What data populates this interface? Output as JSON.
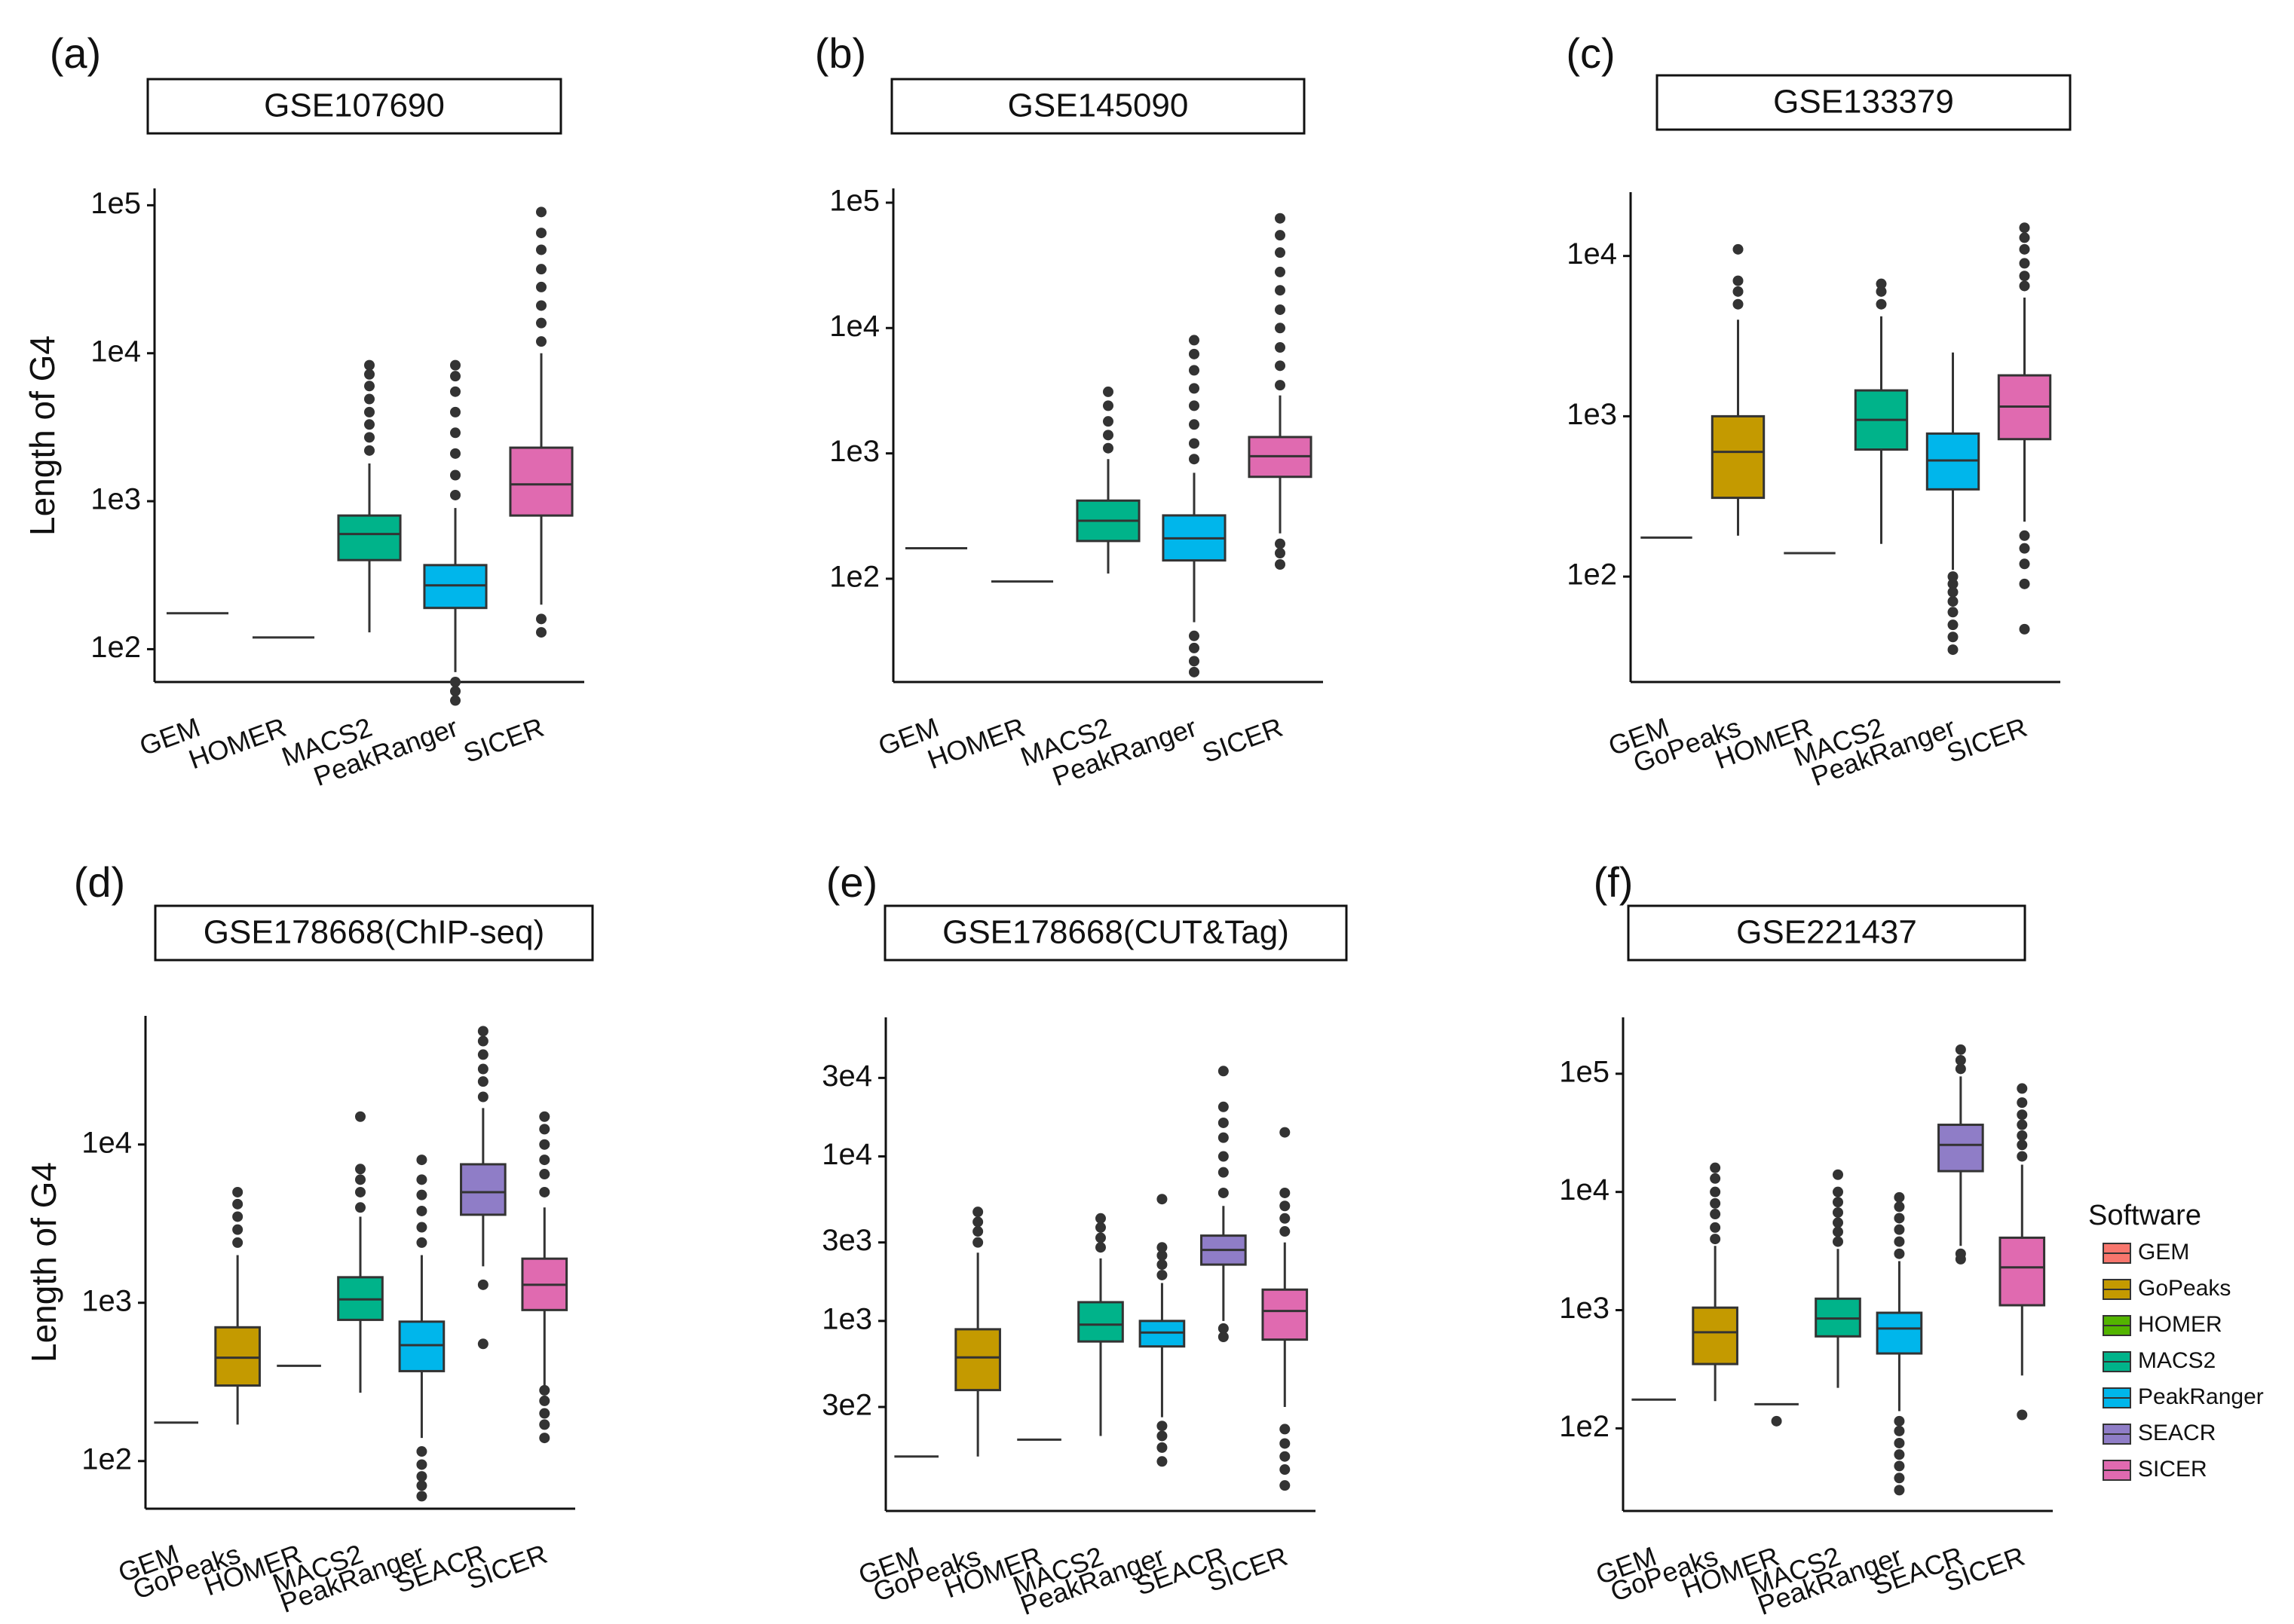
{
  "figure": {
    "legend": {
      "title": "Software",
      "entries": [
        {
          "name": "GEM",
          "color": "#F8766D"
        },
        {
          "name": "GoPeaks",
          "color": "#C49A00"
        },
        {
          "name": "HOMER",
          "color": "#53B400"
        },
        {
          "name": "MACS2",
          "color": "#00B38A"
        },
        {
          "name": "PeakRanger",
          "color": "#00B6EB"
        },
        {
          "name": "SEACR",
          "color": "#8F7DC7"
        },
        {
          "name": "SICER",
          "color": "#E06AB0"
        }
      ]
    }
  },
  "chart_data": [
    {
      "type": "box",
      "panel": "(a)",
      "title": "GSE107690",
      "ylabel": "Length of G4",
      "yscale": "log",
      "ylim": [
        60,
        130000
      ],
      "yticks": [
        {
          "value": 100,
          "label": "1e2"
        },
        {
          "value": 1000,
          "label": "1e3"
        },
        {
          "value": 10000,
          "label": "1e4"
        },
        {
          "value": 100000,
          "label": "1e5"
        }
      ],
      "categories": [
        "GEM",
        "HOMER",
        "MACS2",
        "PeakRanger",
        "SICER"
      ],
      "boxes": [
        {
          "name": "GEM",
          "color": "#F8766D",
          "q1": 175,
          "median": 175,
          "q3": 175,
          "whisker_low": 175,
          "whisker_high": 175,
          "outliers": []
        },
        {
          "name": "HOMER",
          "color": "#53B400",
          "q1": 120,
          "median": 120,
          "q3": 120,
          "whisker_low": 120,
          "whisker_high": 120,
          "outliers": []
        },
        {
          "name": "MACS2",
          "color": "#00B38A",
          "q1": 400,
          "median": 600,
          "q3": 800,
          "whisker_low": 130,
          "whisker_high": 1800,
          "outliers": [
            2200,
            2700,
            3300,
            4000,
            4900,
            6000,
            7200,
            8300
          ]
        },
        {
          "name": "PeakRanger",
          "color": "#00B6EB",
          "q1": 190,
          "median": 270,
          "q3": 370,
          "whisker_low": 70,
          "whisker_high": 900,
          "outliers": [
            45,
            52,
            60,
            1100,
            1500,
            2100,
            2900,
            4000,
            5500,
            7000,
            8300
          ]
        },
        {
          "name": "SICER",
          "color": "#E06AB0",
          "q1": 800,
          "median": 1300,
          "q3": 2300,
          "whisker_low": 200,
          "whisker_high": 10000,
          "outliers": [
            130,
            160,
            12000,
            16000,
            21000,
            28000,
            37000,
            50000,
            65000,
            90000
          ]
        }
      ]
    },
    {
      "type": "box",
      "panel": "(b)",
      "title": "GSE145090",
      "ylabel": "",
      "yscale": "log",
      "ylim": [
        15,
        130000
      ],
      "yticks": [
        {
          "value": 100,
          "label": "1e2"
        },
        {
          "value": 1000,
          "label": "1e3"
        },
        {
          "value": 10000,
          "label": "1e4"
        },
        {
          "value": 100000,
          "label": "1e5"
        }
      ],
      "categories": [
        "GEM",
        "HOMER",
        "MACS2",
        "PeakRanger",
        "SICER"
      ],
      "boxes": [
        {
          "name": "GEM",
          "color": "#F8766D",
          "q1": 175,
          "median": 175,
          "q3": 175,
          "whisker_low": 175,
          "whisker_high": 175,
          "outliers": []
        },
        {
          "name": "HOMER",
          "color": "#53B400",
          "q1": 95,
          "median": 95,
          "q3": 95,
          "whisker_low": 95,
          "whisker_high": 95,
          "outliers": []
        },
        {
          "name": "MACS2",
          "color": "#00B38A",
          "q1": 200,
          "median": 290,
          "q3": 420,
          "whisker_low": 110,
          "whisker_high": 900,
          "outliers": [
            1100,
            1400,
            1800,
            2400,
            3100
          ]
        },
        {
          "name": "PeakRanger",
          "color": "#00B6EB",
          "q1": 140,
          "median": 210,
          "q3": 320,
          "whisker_low": 45,
          "whisker_high": 700,
          "outliers": [
            18,
            22,
            28,
            35,
            900,
            1200,
            1700,
            2400,
            3300,
            4600,
            6200,
            8000
          ]
        },
        {
          "name": "SICER",
          "color": "#E06AB0",
          "q1": 650,
          "median": 950,
          "q3": 1350,
          "whisker_low": 230,
          "whisker_high": 2900,
          "outliers": [
            130,
            160,
            190,
            3500,
            5000,
            7000,
            10000,
            14000,
            20000,
            28000,
            40000,
            55000,
            75000
          ]
        }
      ]
    },
    {
      "type": "box",
      "panel": "(c)",
      "title": "GSE133379",
      "ylabel": "",
      "yscale": "log",
      "ylim": [
        22,
        25000
      ],
      "yticks": [
        {
          "value": 100,
          "label": "1e2"
        },
        {
          "value": 1000,
          "label": "1e3"
        },
        {
          "value": 10000,
          "label": "1e4"
        }
      ],
      "categories": [
        "GEM",
        "GoPeaks",
        "HOMER",
        "MACS2",
        "PeakRanger",
        "SICER"
      ],
      "boxes": [
        {
          "name": "GEM",
          "color": "#F8766D",
          "q1": 175,
          "median": 175,
          "q3": 175,
          "whisker_low": 175,
          "whisker_high": 175,
          "outliers": []
        },
        {
          "name": "GoPeaks",
          "color": "#C49A00",
          "q1": 310,
          "median": 600,
          "q3": 1000,
          "whisker_low": 180,
          "whisker_high": 4000,
          "outliers": [
            5000,
            6000,
            7000,
            11000
          ]
        },
        {
          "name": "HOMER",
          "color": "#53B400",
          "q1": 140,
          "median": 140,
          "q3": 140,
          "whisker_low": 140,
          "whisker_high": 140,
          "outliers": []
        },
        {
          "name": "MACS2",
          "color": "#00B38A",
          "q1": 620,
          "median": 950,
          "q3": 1450,
          "whisker_low": 160,
          "whisker_high": 4200,
          "outliers": [
            5000,
            6000,
            6700
          ]
        },
        {
          "name": "PeakRanger",
          "color": "#00B6EB",
          "q1": 350,
          "median": 530,
          "q3": 780,
          "whisker_low": 110,
          "whisker_high": 2500,
          "outliers": [
            35,
            42,
            50,
            60,
            70,
            80,
            90,
            100
          ]
        },
        {
          "name": "SICER",
          "color": "#E06AB0",
          "q1": 720,
          "median": 1150,
          "q3": 1800,
          "whisker_low": 220,
          "whisker_high": 5500,
          "outliers": [
            47,
            90,
            120,
            150,
            180,
            6500,
            7500,
            9000,
            11000,
            13000,
            15000
          ]
        }
      ]
    },
    {
      "type": "box",
      "panel": "(d)",
      "title": "GSE178668(ChIP-seq)",
      "ylabel": "Length of G4",
      "yscale": "log",
      "ylim": [
        50,
        65000
      ],
      "yticks": [
        {
          "value": 100,
          "label": "1e2"
        },
        {
          "value": 1000,
          "label": "1e3"
        },
        {
          "value": 10000,
          "label": "1e4"
        }
      ],
      "categories": [
        "GEM",
        "GoPeaks",
        "HOMER",
        "MACS2",
        "PeakRanger",
        "SEACR",
        "SICER"
      ],
      "boxes": [
        {
          "name": "GEM",
          "color": "#F8766D",
          "q1": 175,
          "median": 175,
          "q3": 175,
          "whisker_low": 175,
          "whisker_high": 175,
          "outliers": []
        },
        {
          "name": "GoPeaks",
          "color": "#C49A00",
          "q1": 300,
          "median": 450,
          "q3": 700,
          "whisker_low": 170,
          "whisker_high": 2000,
          "outliers": [
            2400,
            2900,
            3500,
            4200,
            5000
          ]
        },
        {
          "name": "HOMER",
          "color": "#53B400",
          "q1": 400,
          "median": 400,
          "q3": 400,
          "whisker_low": 400,
          "whisker_high": 400,
          "outliers": []
        },
        {
          "name": "MACS2",
          "color": "#00B38A",
          "q1": 780,
          "median": 1050,
          "q3": 1450,
          "whisker_low": 270,
          "whisker_high": 3500,
          "outliers": [
            4000,
            5000,
            6000,
            7000,
            15000
          ]
        },
        {
          "name": "PeakRanger",
          "color": "#00B6EB",
          "q1": 370,
          "median": 540,
          "q3": 760,
          "whisker_low": 140,
          "whisker_high": 2000,
          "outliers": [
            60,
            70,
            80,
            95,
            115,
            2400,
            3000,
            3800,
            4800,
            6000,
            8000
          ]
        },
        {
          "name": "SEACR",
          "color": "#8F7DC7",
          "q1": 3600,
          "median": 5000,
          "q3": 7500,
          "whisker_low": 1700,
          "whisker_high": 17000,
          "outliers": [
            550,
            1300,
            20000,
            25000,
            30000,
            37000,
            45000,
            52000
          ]
        },
        {
          "name": "SICER",
          "color": "#E06AB0",
          "q1": 900,
          "median": 1300,
          "q3": 1900,
          "whisker_low": 300,
          "whisker_high": 4000,
          "outliers": [
            140,
            170,
            200,
            240,
            280,
            5000,
            6500,
            8000,
            10000,
            12500,
            15000
          ]
        }
      ]
    },
    {
      "type": "box",
      "panel": "(e)",
      "title": "GSE178668(CUT&Tag)",
      "ylabel": "",
      "yscale": "log",
      "ylim": [
        70,
        70000
      ],
      "yticks": [
        {
          "value": 300,
          "label": "3e2"
        },
        {
          "value": 1000,
          "label": "1e3"
        },
        {
          "value": 3000,
          "label": "3e3"
        },
        {
          "value": 10000,
          "label": "1e4"
        },
        {
          "value": 30000,
          "label": "3e4"
        }
      ],
      "categories": [
        "GEM",
        "GoPeaks",
        "HOMER",
        "MACS2",
        "PeakRanger",
        "SEACR",
        "SICER"
      ],
      "boxes": [
        {
          "name": "GEM",
          "color": "#F8766D",
          "q1": 150,
          "median": 150,
          "q3": 150,
          "whisker_low": 150,
          "whisker_high": 150,
          "outliers": []
        },
        {
          "name": "GoPeaks",
          "color": "#C49A00",
          "q1": 380,
          "median": 600,
          "q3": 890,
          "whisker_low": 150,
          "whisker_high": 2600,
          "outliers": [
            3000,
            3500,
            4000,
            4600
          ]
        },
        {
          "name": "HOMER",
          "color": "#53B400",
          "q1": 190,
          "median": 190,
          "q3": 190,
          "whisker_low": 190,
          "whisker_high": 190,
          "outliers": []
        },
        {
          "name": "MACS2",
          "color": "#00B38A",
          "q1": 750,
          "median": 950,
          "q3": 1300,
          "whisker_low": 200,
          "whisker_high": 2400,
          "outliers": [
            2800,
            3200,
            3700,
            4200
          ]
        },
        {
          "name": "PeakRanger",
          "color": "#00B6EB",
          "q1": 700,
          "median": 850,
          "q3": 1000,
          "whisker_low": 260,
          "whisker_high": 1700,
          "outliers": [
            140,
            170,
            200,
            230,
            1900,
            2200,
            2500,
            2800,
            5500
          ]
        },
        {
          "name": "SEACR",
          "color": "#8F7DC7",
          "q1": 2200,
          "median": 2700,
          "q3": 3300,
          "whisker_low": 1000,
          "whisker_high": 5000,
          "outliers": [
            800,
            900,
            6000,
            8000,
            10000,
            13000,
            16000,
            20000,
            33000
          ]
        },
        {
          "name": "SICER",
          "color": "#E06AB0",
          "q1": 770,
          "median": 1150,
          "q3": 1550,
          "whisker_low": 300,
          "whisker_high": 3000,
          "outliers": [
            100,
            125,
            150,
            180,
            220,
            3500,
            4200,
            5000,
            6000,
            14000
          ]
        }
      ]
    },
    {
      "type": "box",
      "panel": "(f)",
      "title": "GSE221437",
      "ylabel": "",
      "yscale": "log",
      "ylim": [
        20,
        300000
      ],
      "yticks": [
        {
          "value": 100,
          "label": "1e2"
        },
        {
          "value": 1000,
          "label": "1e3"
        },
        {
          "value": 10000,
          "label": "1e4"
        },
        {
          "value": 100000,
          "label": "1e5"
        }
      ],
      "categories": [
        "GEM",
        "GoPeaks",
        "HOMER",
        "MACS2",
        "PeakRanger",
        "SEACR",
        "SICER"
      ],
      "boxes": [
        {
          "name": "GEM",
          "color": "#F8766D",
          "q1": 175,
          "median": 175,
          "q3": 175,
          "whisker_low": 175,
          "whisker_high": 175,
          "outliers": []
        },
        {
          "name": "GoPeaks",
          "color": "#C49A00",
          "q1": 350,
          "median": 650,
          "q3": 1050,
          "whisker_low": 170,
          "whisker_high": 3500,
          "outliers": [
            4000,
            5000,
            6500,
            8000,
            10000,
            13000,
            16000
          ]
        },
        {
          "name": "HOMER",
          "color": "#53B400",
          "q1": 160,
          "median": 160,
          "q3": 160,
          "whisker_low": 160,
          "whisker_high": 160,
          "outliers": [
            115
          ]
        },
        {
          "name": "MACS2",
          "color": "#00B38A",
          "q1": 600,
          "median": 850,
          "q3": 1250,
          "whisker_low": 220,
          "whisker_high": 3300,
          "outliers": [
            3800,
            4600,
            5500,
            6700,
            8200,
            10000,
            14000
          ]
        },
        {
          "name": "PeakRanger",
          "color": "#00B6EB",
          "q1": 430,
          "median": 700,
          "q3": 950,
          "whisker_low": 140,
          "whisker_high": 2600,
          "outliers": [
            30,
            38,
            48,
            60,
            75,
            95,
            115,
            3000,
            3800,
            4800,
            6000,
            7500,
            9000
          ]
        },
        {
          "name": "SEACR",
          "color": "#8F7DC7",
          "q1": 15000,
          "median": 25000,
          "q3": 37000,
          "whisker_low": 3500,
          "whisker_high": 95000,
          "outliers": [
            2700,
            3000,
            110000,
            130000,
            160000
          ]
        },
        {
          "name": "SICER",
          "color": "#E06AB0",
          "q1": 1100,
          "median": 2300,
          "q3": 4100,
          "whisker_low": 280,
          "whisker_high": 17000,
          "outliers": [
            130,
            20000,
            25000,
            30000,
            37000,
            45000,
            57000,
            75000
          ]
        }
      ]
    }
  ]
}
